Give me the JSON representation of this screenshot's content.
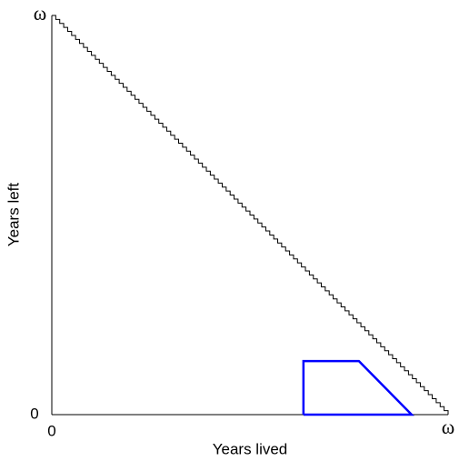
{
  "chart_data": {
    "type": "lexis",
    "x_label": "Years lived",
    "y_label": "Years left",
    "xlim": [
      0,
      1
    ],
    "ylim": [
      0,
      1
    ],
    "xticks": [
      0,
      {
        "value": 1,
        "label": "ω"
      }
    ],
    "yticks": [
      0,
      {
        "value": 1,
        "label": "ω"
      }
    ],
    "series": [
      {
        "color": "#000000",
        "steps": 100,
        "x": [
          0,
          1
        ],
        "values": [
          1,
          0
        ]
      },
      {
        "color": "#0000ff",
        "x": [
          0.635,
          0.635,
          0.775,
          0.908,
          0.635
        ],
        "values": [
          0,
          0.134,
          0.134,
          0,
          0
        ]
      }
    ]
  }
}
